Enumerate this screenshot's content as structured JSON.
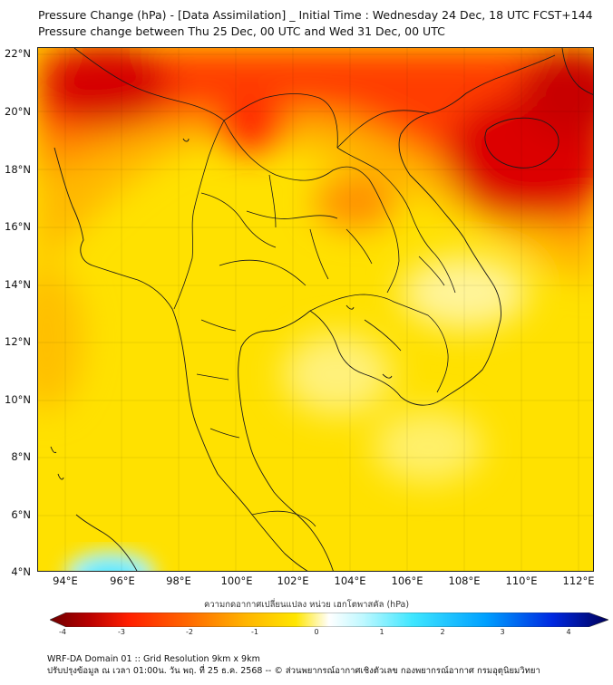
{
  "title": {
    "line1": "Pressure Change (hPa) - [Data Assimilation] _ Initial Time : Wednesday 24 Dec, 18 UTC FCST+144",
    "line2": "Pressure change between Thu 25 Dec, 00 UTC and Wed 31 Dec, 00 UTC"
  },
  "map": {
    "lat_labels": [
      "22°N",
      "20°N",
      "18°N",
      "16°N",
      "14°N",
      "12°N",
      "10°N",
      "8°N",
      "6°N",
      "4°N"
    ],
    "lon_labels": [
      "94°E",
      "96°E",
      "98°E",
      "100°E",
      "102°E",
      "104°E",
      "106°E",
      "108°E",
      "110°E",
      "112°E"
    ],
    "colors": {
      "deep_red": "#d40000",
      "red": "#ff2a00",
      "orange": "#ff8c00",
      "amber": "#ffc000",
      "yellow": "#ffe600",
      "pale_yellow": "#fff59a",
      "cyan": "#5ef0ff"
    }
  },
  "colorbar": {
    "label": "ความกดอากาศเปลี่ยนแปลง หน่วย เฮกโตพาสคัล (hPa)",
    "ticks": [
      "-4",
      "-3",
      "-2",
      "-1",
      "0",
      "1",
      "2",
      "3",
      "4"
    ]
  },
  "footer": {
    "line1": "WRF-DA Domain 01 :: Grid Resolution 9km x 9km",
    "line2": "ปรับปรุงข้อมูล ณ เวลา 01:00น. วัน พฤ. ที่ 25 ธ.ค. 2568 -- © ส่วนพยากรณ์อากาศเชิงตัวเลข กองพยากรณ์อากาศ กรมอุตุนิยมวิทยา"
  }
}
